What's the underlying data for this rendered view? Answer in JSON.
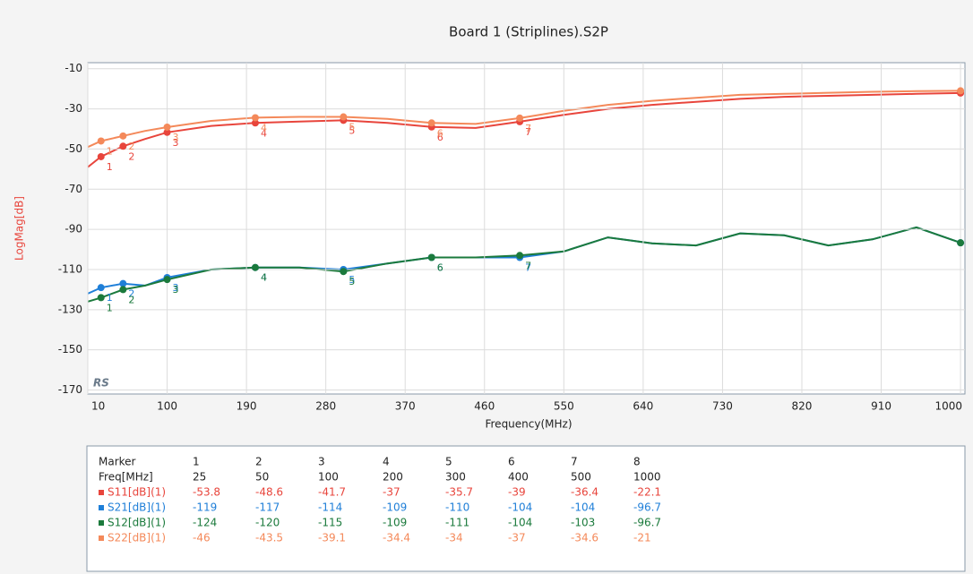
{
  "chart_data": {
    "type": "line",
    "title": "Board 1 (Striplines).S2P",
    "x_label": "Frequency(MHz)",
    "y_label": "LogMag[dB]",
    "logo": "RS",
    "xlim": [
      10,
      1005
    ],
    "ylim": [
      -172,
      -7
    ],
    "xticks": [
      10,
      100,
      190,
      280,
      370,
      460,
      550,
      640,
      730,
      820,
      910,
      1000
    ],
    "yticks": [
      -10,
      -30,
      -50,
      -70,
      -90,
      -110,
      -130,
      -150,
      -170
    ],
    "grid": true,
    "x": [
      10,
      25,
      50,
      75,
      100,
      150,
      200,
      250,
      300,
      350,
      400,
      450,
      500,
      550,
      600,
      650,
      700,
      750,
      800,
      850,
      900,
      950,
      1000
    ],
    "series": [
      {
        "name": "S11[dB](1)",
        "color": "#e8453c",
        "values": [
          -59,
          -53.8,
          -48.6,
          -45,
          -41.7,
          -38.5,
          -37,
          -36.3,
          -35.7,
          -37,
          -39,
          -39.5,
          -36.4,
          -33,
          -30,
          -28,
          -26.5,
          -25,
          -24,
          -23.5,
          -23,
          -22.5,
          -22.1
        ]
      },
      {
        "name": "S21[dB](1)",
        "color": "#1f7fd8",
        "values": [
          -122,
          -119,
          -117,
          -118,
          -114,
          -110,
          -109,
          -109,
          -110,
          -107,
          -104,
          -104,
          -104,
          -101,
          -94,
          -97,
          -98,
          -92,
          -93,
          -98,
          -95,
          -89,
          -96.7
        ]
      },
      {
        "name": "S12[dB](1)",
        "color": "#1b7a3c",
        "values": [
          -126,
          -124,
          -120,
          -118,
          -115,
          -110,
          -109,
          -109,
          -111,
          -107,
          -104,
          -104,
          -103,
          -101,
          -94,
          -97,
          -98,
          -92,
          -93,
          -98,
          -95,
          -89,
          -96.7
        ]
      },
      {
        "name": "S22[dB](1)",
        "color": "#f4895a",
        "values": [
          -49,
          -46,
          -43.5,
          -41,
          -39.1,
          -36,
          -34.4,
          -34,
          -34,
          -35,
          -37,
          -37.5,
          -34.6,
          -31,
          -28,
          -26,
          -24.5,
          -23,
          -22.5,
          -22,
          -21.5,
          -21.2,
          -21
        ]
      }
    ],
    "markers": {
      "marker_header": "Marker",
      "freq_header": "Freq[MHz]",
      "numbers": [
        1,
        2,
        3,
        4,
        5,
        6,
        7,
        8
      ],
      "freqs": [
        25,
        50,
        100,
        200,
        300,
        400,
        500,
        1000
      ],
      "rows": [
        [
          -53.8,
          -48.6,
          -41.7,
          -37,
          -35.7,
          -39,
          -36.4,
          -22.1
        ],
        [
          -119,
          -117,
          -114,
          -109,
          -110,
          -104,
          -104,
          -96.7
        ],
        [
          -124,
          -120,
          -115,
          -109,
          -111,
          -104,
          -103,
          -96.7
        ],
        [
          -46,
          -43.5,
          -39.1,
          -34.4,
          -34,
          -37,
          -34.6,
          -21
        ]
      ]
    }
  }
}
